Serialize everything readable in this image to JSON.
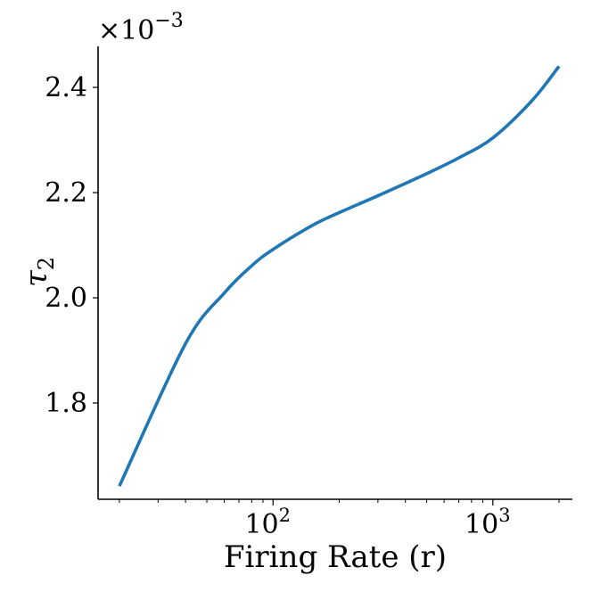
{
  "chart_data": {
    "type": "line",
    "title": "",
    "xlabel": "Firing Rate (r)",
    "ylabel": "τ",
    "ylabel_subscript": "2",
    "y_multiplier_label": "×10",
    "y_multiplier_exponent": "−3",
    "xscale": "log",
    "xlim": [
      16,
      2300
    ],
    "ylim": [
      1.617,
      2.478
    ],
    "x_ticks": [
      {
        "value": 100,
        "base": "10",
        "exp": "2"
      },
      {
        "value": 1000,
        "base": "10",
        "exp": "3"
      }
    ],
    "y_ticks": [
      {
        "value": 1.8,
        "label": "1.8"
      },
      {
        "value": 2.0,
        "label": "2.0"
      },
      {
        "value": 2.2,
        "label": "2.2"
      },
      {
        "value": 2.4,
        "label": "2.4"
      }
    ],
    "grid": false,
    "series": [
      {
        "color": "#1f77b4",
        "x": [
          20,
          40,
          60,
          80,
          100,
          150,
          200,
          300,
          500,
          700,
          1000,
          1500,
          2000
        ],
        "y": [
          1.642,
          1.913,
          2.009,
          2.061,
          2.092,
          2.137,
          2.162,
          2.194,
          2.236,
          2.266,
          2.304,
          2.374,
          2.44
        ]
      }
    ]
  }
}
